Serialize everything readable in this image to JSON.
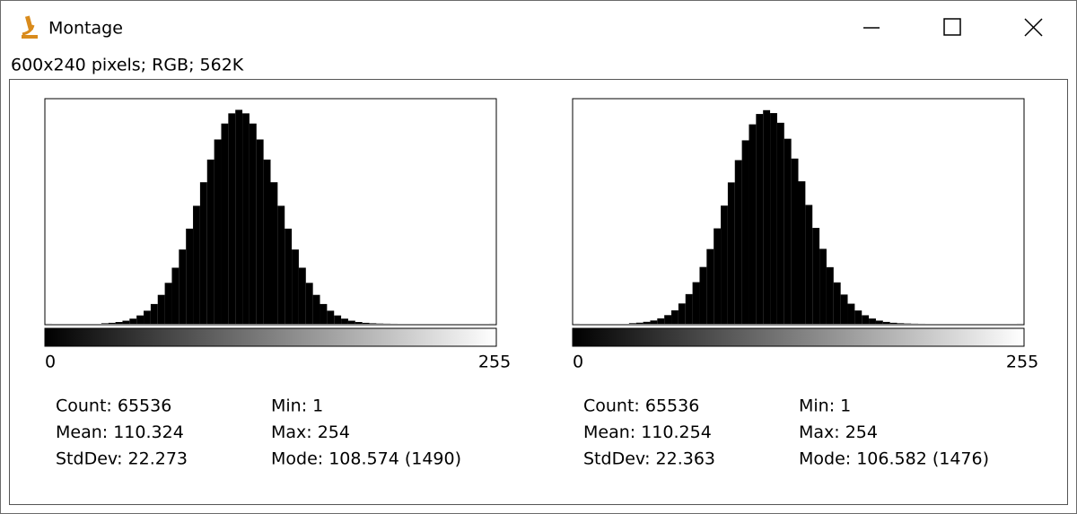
{
  "window": {
    "title": "Montage",
    "info": "600x240 pixels; RGB; 562K"
  },
  "chart_data": [
    {
      "type": "histogram",
      "color": "#000000",
      "bins": [
        0,
        4,
        8,
        12,
        16,
        20,
        24,
        28,
        32,
        36,
        40,
        44,
        48,
        52,
        56,
        60,
        64,
        68,
        72,
        76,
        80,
        84,
        88,
        92,
        96,
        100,
        104,
        108,
        112,
        116,
        120,
        124,
        128,
        132,
        136,
        140,
        144,
        148,
        152,
        156,
        160,
        164,
        168,
        172,
        176,
        180,
        184,
        188,
        192,
        196,
        200,
        204,
        208,
        212,
        216,
        220,
        224,
        228,
        232,
        236,
        240,
        244,
        248,
        252,
        256
      ],
      "values": [
        1,
        0,
        0,
        0,
        0,
        0,
        0,
        0,
        12,
        22,
        40,
        69,
        115,
        186,
        291,
        440,
        643,
        910,
        1246,
        1650,
        2114,
        2621,
        3144,
        3648,
        4094,
        4448,
        4674,
        4752,
        4674,
        4448,
        4094,
        3648,
        3144,
        2621,
        2114,
        1650,
        1246,
        910,
        643,
        440,
        291,
        186,
        115,
        69,
        40,
        22,
        12,
        6,
        3,
        1,
        0,
        0,
        0,
        0,
        0,
        0,
        0,
        0,
        0,
        0,
        0,
        0,
        0,
        1
      ],
      "xlim": [
        0,
        256
      ],
      "xticks": [
        0,
        255
      ],
      "ylim": [
        0,
        5000
      ],
      "stats": [
        "Count: 65536",
        "Mean: 110.324",
        "StdDev: 22.273",
        "Min: 1",
        "Max: 254",
        "Mode: 108.574 (1490)"
      ]
    },
    {
      "type": "histogram",
      "color": "#000000",
      "bins": [
        0,
        4,
        8,
        12,
        16,
        20,
        24,
        28,
        32,
        36,
        40,
        44,
        48,
        52,
        56,
        60,
        64,
        68,
        72,
        76,
        80,
        84,
        88,
        92,
        96,
        100,
        104,
        108,
        112,
        116,
        120,
        124,
        128,
        132,
        136,
        140,
        144,
        148,
        152,
        156,
        160,
        164,
        168,
        172,
        176,
        180,
        184,
        188,
        192,
        196,
        200,
        204,
        208,
        212,
        216,
        220,
        224,
        228,
        232,
        236,
        240,
        244,
        248,
        252,
        256
      ],
      "values": [
        1,
        0,
        0,
        0,
        0,
        0,
        0,
        0,
        14,
        25,
        44,
        74,
        121,
        193,
        300,
        452,
        660,
        925,
        1262,
        1660,
        2120,
        2625,
        3140,
        3635,
        4075,
        4430,
        4660,
        4745,
        4680,
        4465,
        4110,
        3670,
        3165,
        2640,
        2130,
        1665,
        1258,
        920,
        650,
        447,
        296,
        190,
        118,
        71,
        42,
        23,
        13,
        7,
        3,
        1,
        0,
        0,
        0,
        0,
        0,
        0,
        0,
        0,
        0,
        0,
        0,
        0,
        0,
        1
      ],
      "xlim": [
        0,
        256
      ],
      "xticks": [
        0,
        255
      ],
      "ylim": [
        0,
        5000
      ],
      "stats": [
        "Count: 65536",
        "Mean: 110.254",
        "StdDev: 22.363",
        "Min: 1",
        "Max: 254",
        "Mode: 106.582 (1476)"
      ]
    }
  ]
}
